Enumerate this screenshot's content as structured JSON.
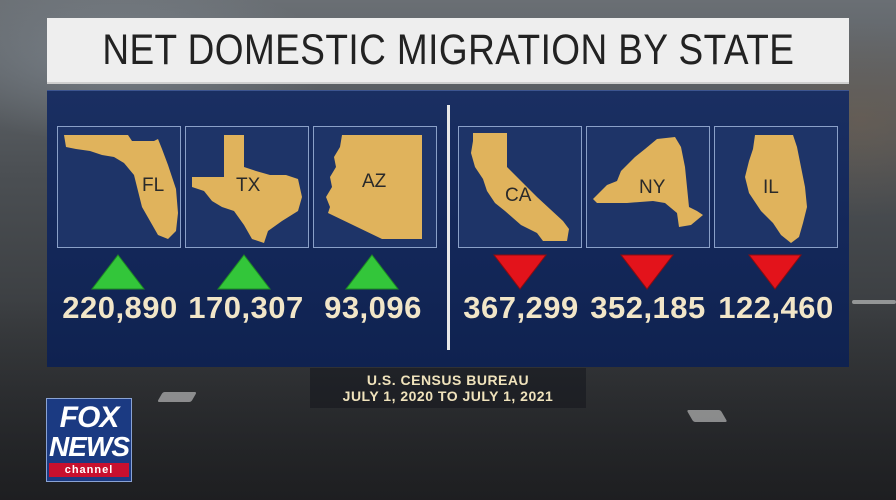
{
  "title": "NET DOMESTIC MIGRATION BY STATE",
  "colors": {
    "panel": "#14285a",
    "state_fill": "#e0b35c",
    "up_arrow": "#33c63a",
    "down_arrow": "#e3131b",
    "value_text": "#f2e6c8"
  },
  "states": [
    {
      "abbr": "FL",
      "value": "220,890",
      "direction": "up"
    },
    {
      "abbr": "TX",
      "value": "170,307",
      "direction": "up"
    },
    {
      "abbr": "AZ",
      "value": "93,096",
      "direction": "up"
    },
    {
      "abbr": "CA",
      "value": "367,299",
      "direction": "down"
    },
    {
      "abbr": "NY",
      "value": "352,185",
      "direction": "down"
    },
    {
      "abbr": "IL",
      "value": "122,460",
      "direction": "down"
    }
  ],
  "source": {
    "line1": "U.S. CENSUS BUREAU",
    "line2": "JULY 1, 2020 TO JULY 1, 2021"
  },
  "logo": {
    "fox": "FOX",
    "news": "NEWS",
    "channel": "channel"
  }
}
